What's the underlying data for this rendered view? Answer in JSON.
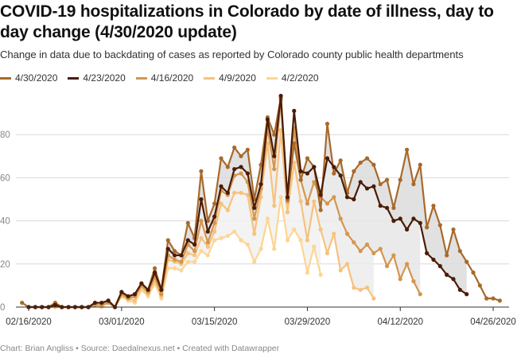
{
  "header": {
    "title": "COVID-19 hospitalizations in Colorado by date of illness, day to day change (4/30/2020 update)",
    "subtitle": "Change in data due to backdating of cases as reported by Colorado county public health departments"
  },
  "footer": {
    "credit": "Chart: Brian Angliss • Source: Daedalnexus.net • Created with Datawrapper"
  },
  "chart_data": {
    "type": "line",
    "title": "COVID-19 hospitalizations in Colorado by date of illness, day to day change (4/30/2020 update)",
    "xlabel": "",
    "ylabel": "",
    "x_start_date": "02/15/2020",
    "x_unit": "day",
    "xlim_days": [
      0,
      72
    ],
    "ylim": [
      0,
      100
    ],
    "yticks": [
      0,
      20,
      40,
      60,
      80
    ],
    "xticks": [
      {
        "day": 1,
        "label": "02/16/2020"
      },
      {
        "day": 15,
        "label": "03/01/2020"
      },
      {
        "day": 29,
        "label": "03/15/2020"
      },
      {
        "day": 43,
        "label": "03/29/2020"
      },
      {
        "day": 57,
        "label": "04/12/2020"
      },
      {
        "day": 71,
        "label": "04/26/2020"
      }
    ],
    "grid": true,
    "legend_position": "top-left",
    "series": [
      {
        "name": "4/30/2020",
        "color": "#a8692a",
        "values": [
          2,
          0,
          0,
          0,
          0,
          2,
          0,
          0,
          0,
          0,
          0,
          2,
          2,
          3,
          0,
          7,
          5,
          6,
          11,
          8,
          18,
          8,
          31,
          26,
          24,
          39,
          32,
          63,
          40,
          48,
          69,
          65,
          74,
          70,
          73,
          50,
          66,
          88,
          80,
          97,
          50,
          76,
          59,
          69,
          65,
          45,
          85,
          62,
          68,
          53,
          63,
          67,
          69,
          66,
          57,
          59,
          46,
          59,
          73,
          57,
          66,
          37,
          47,
          38,
          24,
          36,
          26,
          21,
          16,
          10,
          4,
          4,
          3
        ]
      },
      {
        "name": "4/23/2020",
        "color": "#4a1c06",
        "values": [
          null,
          0,
          0,
          0,
          0,
          1,
          0,
          0,
          0,
          0,
          0,
          2,
          2,
          3,
          0,
          7,
          5,
          6,
          11,
          8,
          16,
          8,
          27,
          24,
          24,
          31,
          29,
          50,
          35,
          42,
          56,
          53,
          64,
          65,
          62,
          46,
          57,
          87,
          70,
          98,
          51,
          91,
          63,
          62,
          65,
          52,
          69,
          65,
          61,
          51,
          50,
          58,
          55,
          56,
          47,
          46,
          40,
          41,
          36,
          41,
          39,
          25,
          22,
          19,
          15,
          13,
          8,
          6
        ]
      },
      {
        "name": "4/16/2020",
        "color": "#d4964f",
        "values": [
          null,
          0,
          0,
          0,
          0,
          1,
          0,
          0,
          0,
          0,
          0,
          1,
          1,
          2,
          0,
          6,
          4,
          5,
          10,
          7,
          14,
          6,
          24,
          22,
          21,
          29,
          26,
          40,
          30,
          39,
          54,
          52,
          61,
          62,
          58,
          41,
          55,
          83,
          64,
          96,
          49,
          83,
          59,
          48,
          58,
          51,
          48,
          51,
          41,
          34,
          30,
          26,
          29,
          25,
          27,
          19,
          24,
          13,
          20,
          12,
          6
        ]
      },
      {
        "name": "4/9/2020",
        "color": "#f6c27d",
        "values": [
          null,
          0,
          0,
          0,
          0,
          0,
          0,
          0,
          0,
          0,
          0,
          1,
          1,
          2,
          0,
          5,
          4,
          3,
          9,
          6,
          12,
          5,
          22,
          21,
          20,
          25,
          24,
          32,
          28,
          35,
          48,
          45,
          53,
          53,
          52,
          34,
          51,
          76,
          47,
          82,
          44,
          67,
          49,
          31,
          49,
          36,
          25,
          34,
          17,
          20,
          9,
          8,
          9,
          4
        ]
      },
      {
        "name": "4/2/2020",
        "color": "#fed593",
        "values": [
          null,
          0,
          0,
          0,
          0,
          0,
          0,
          0,
          0,
          0,
          0,
          1,
          0,
          2,
          0,
          5,
          3,
          2,
          8,
          5,
          11,
          4,
          18,
          18,
          17,
          21,
          21,
          26,
          24,
          31,
          32,
          33,
          35,
          31,
          29,
          21,
          27,
          41,
          27,
          51,
          31,
          36,
          31,
          16,
          28,
          15
        ]
      }
    ]
  }
}
